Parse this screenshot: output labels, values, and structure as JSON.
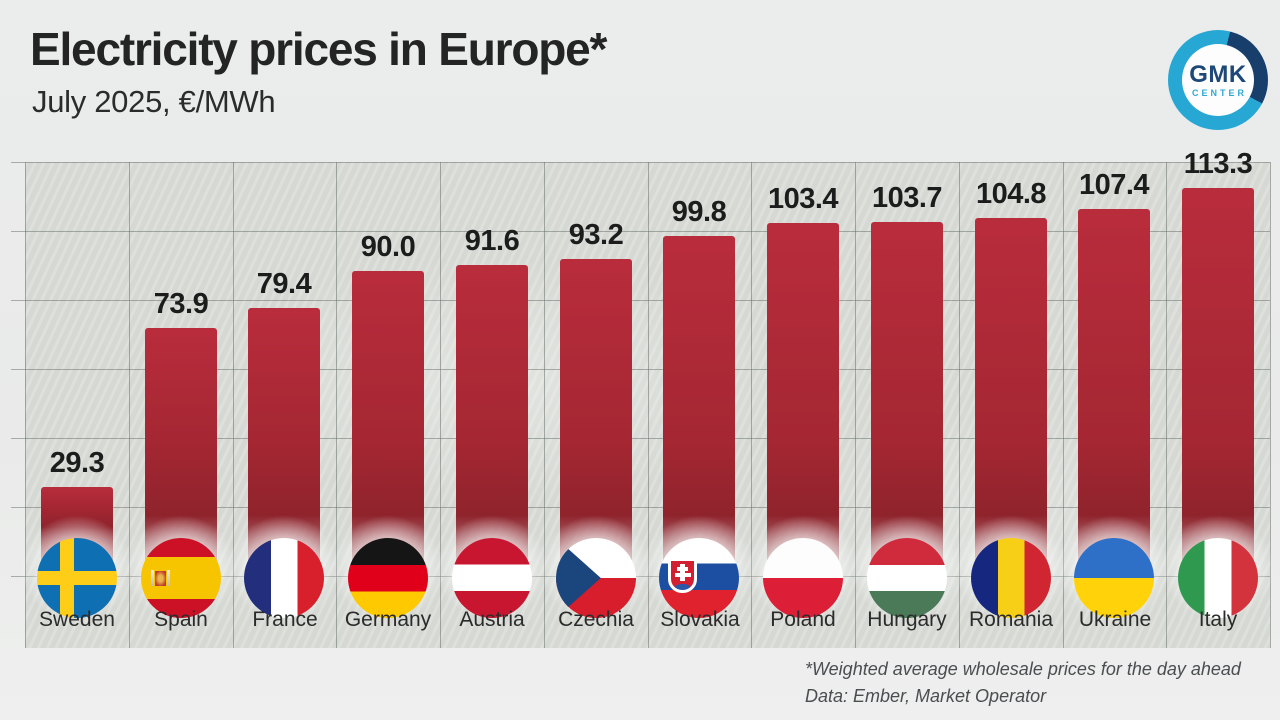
{
  "header": {
    "title": "Electricity prices in Europe*",
    "subtitle": "July 2025, €/MWh"
  },
  "logo": {
    "line1": "GMK",
    "line2": "CENTER",
    "ring_color": "#27a7d4",
    "segment_color": "#183f6c"
  },
  "chart_data": {
    "type": "bar",
    "title": "Electricity prices in Europe*",
    "subtitle": "July 2025, €/MWh",
    "unit": "€/MWh",
    "categories": [
      "Sweden",
      "Spain",
      "France",
      "Germany",
      "Austria",
      "Czechia",
      "Slovakia",
      "Poland",
      "Hungary",
      "Romania",
      "Ukraine",
      "Italy"
    ],
    "values": [
      29.3,
      73.9,
      79.4,
      90.0,
      91.6,
      93.2,
      99.8,
      103.4,
      103.7,
      104.8,
      107.4,
      113.3
    ],
    "value_labels": [
      "29.3",
      "73.9",
      "79.4",
      "90.0",
      "91.6",
      "93.2",
      "99.8",
      "103.4",
      "103.7",
      "104.8",
      "107.4",
      "113.3"
    ],
    "flag_icons": [
      "sweden-flag-icon",
      "spain-flag-icon",
      "france-flag-icon",
      "germany-flag-icon",
      "austria-flag-icon",
      "czechia-flag-icon",
      "slovakia-flag-icon",
      "poland-flag-icon",
      "hungary-flag-icon",
      "romania-flag-icon",
      "ukraine-flag-icon",
      "italy-flag-icon"
    ],
    "bar_color": "#ac2734",
    "ylim": [
      0,
      122
    ],
    "grid": true,
    "legend_position": "none",
    "value_labels_shown": true
  },
  "footnote": {
    "line1": "*Weighted average wholesale prices for the day ahead",
    "line2": "Data: Ember, Market Operator"
  }
}
